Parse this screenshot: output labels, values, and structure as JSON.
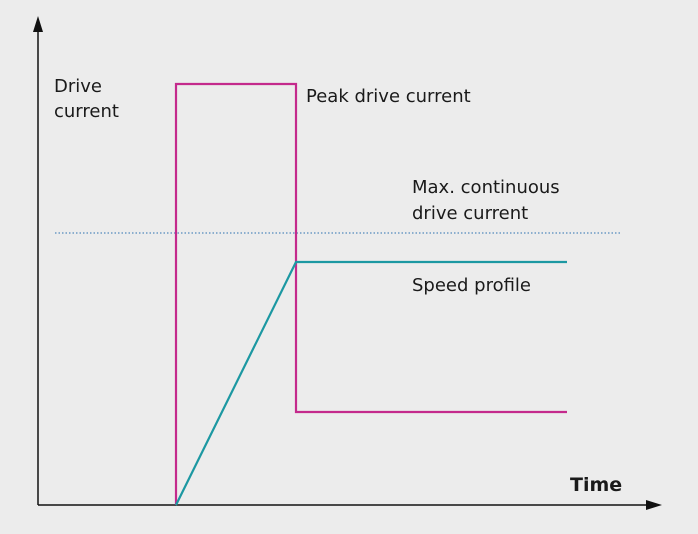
{
  "y_axis_label": [
    "Drive",
    "current"
  ],
  "x_axis_label": "Time",
  "curves": [
    {
      "label": [
        "Peak drive current"
      ]
    },
    {
      "label": [
        "Max. continuous",
        "drive current"
      ]
    },
    {
      "label": [
        "Speed profile"
      ]
    }
  ]
}
